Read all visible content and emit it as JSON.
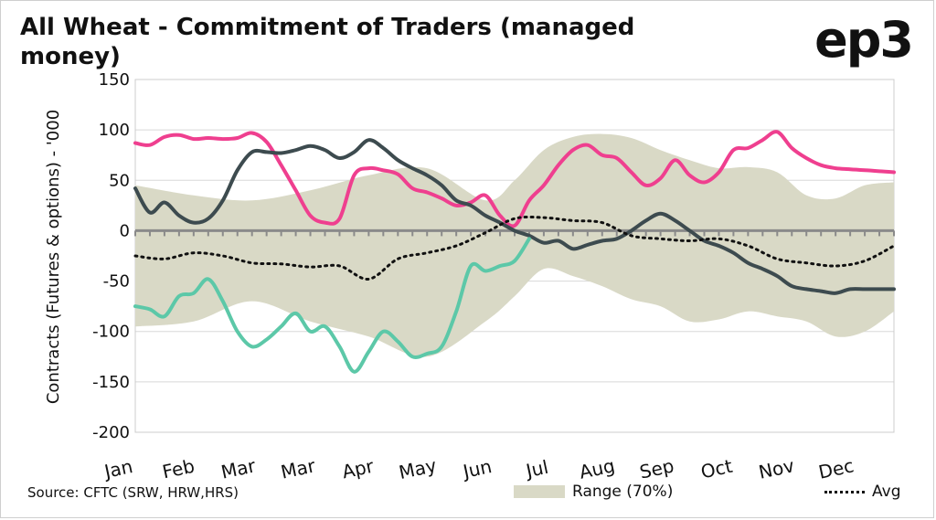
{
  "header": {
    "title": "All Wheat - Commitment of Traders (managed money)",
    "logo_text": "ep3"
  },
  "footer": {
    "source": "Source: CFTC (SRW, HRW,HRS)"
  },
  "colors": {
    "range_fill": "#d9d9c6",
    "pink": "#ef3f8f",
    "dark": "#3d4b4f",
    "teal": "#5cc8a8",
    "avg": "#111111",
    "grid": "#d8d8d8",
    "zero_line": "#8a8a8a"
  },
  "chart_data": {
    "type": "line",
    "ylabel": "Contracts (Futures & options) - '000",
    "ylim": [
      -200,
      150
    ],
    "y_ticks": [
      "150",
      "100",
      "50",
      "0",
      "-50",
      "-100",
      "-150",
      "-200"
    ],
    "x_range": [
      0,
      52
    ],
    "grid": true,
    "legend_position": "bottom",
    "month_labels": [
      "Jan",
      "Feb",
      "Mar",
      "Mar",
      "Apr",
      "May",
      "Jun",
      "Jul",
      "Aug",
      "Sep",
      "Oct",
      "Nov",
      "Dec"
    ],
    "week_ticks": 52,
    "range_band": {
      "name": "Range (70%)",
      "x": [
        0,
        4,
        8,
        12,
        16,
        20,
        24,
        26,
        28,
        30,
        32,
        34,
        36,
        38,
        40,
        42,
        44,
        46,
        48,
        50,
        52
      ],
      "upper": [
        45,
        35,
        30,
        40,
        55,
        62,
        30,
        50,
        80,
        93,
        96,
        92,
        80,
        70,
        62,
        63,
        58,
        35,
        32,
        45,
        48
      ],
      "lower": [
        -95,
        -90,
        -70,
        -90,
        -105,
        -125,
        -90,
        -65,
        -38,
        -45,
        -55,
        -68,
        -75,
        -90,
        -88,
        -80,
        -85,
        -90,
        -105,
        -100,
        -80
      ]
    },
    "series": [
      {
        "name": "",
        "color_key": "pink",
        "x": [
          0,
          1,
          2,
          3,
          4,
          5,
          6,
          7,
          8,
          9,
          10,
          11,
          12,
          13,
          14,
          15,
          16,
          17,
          18,
          19,
          20,
          21,
          22,
          23,
          24,
          25,
          26,
          27,
          28,
          29,
          30,
          31,
          32,
          33,
          34,
          35,
          36,
          37,
          38,
          39,
          40,
          41,
          42,
          43,
          44,
          45,
          46,
          47,
          48,
          49,
          50,
          51,
          52
        ],
        "values": [
          87,
          85,
          93,
          95,
          91,
          92,
          91,
          92,
          97,
          88,
          65,
          40,
          15,
          8,
          12,
          55,
          62,
          60,
          56,
          42,
          38,
          32,
          25,
          28,
          35,
          15,
          5,
          30,
          45,
          65,
          80,
          85,
          75,
          72,
          58,
          45,
          52,
          70,
          55,
          48,
          58,
          80,
          82,
          90,
          98,
          82,
          72,
          65,
          62,
          61,
          60,
          59,
          58
        ]
      },
      {
        "name": "",
        "color_key": "dark",
        "x": [
          0,
          1,
          2,
          3,
          4,
          5,
          6,
          7,
          8,
          9,
          10,
          11,
          12,
          13,
          14,
          15,
          16,
          17,
          18,
          19,
          20,
          21,
          22,
          23,
          24,
          25,
          26,
          27,
          28,
          29,
          30,
          31,
          32,
          33,
          34,
          35,
          36,
          37,
          38,
          39,
          40,
          41,
          42,
          43,
          44,
          45,
          46,
          47,
          48,
          49,
          50,
          51,
          52
        ],
        "values": [
          42,
          18,
          28,
          15,
          8,
          12,
          30,
          60,
          78,
          78,
          77,
          80,
          84,
          80,
          72,
          78,
          90,
          82,
          70,
          62,
          55,
          45,
          30,
          25,
          15,
          8,
          0,
          -5,
          -12,
          -10,
          -18,
          -14,
          -10,
          -8,
          0,
          10,
          17,
          10,
          0,
          -10,
          -15,
          -22,
          -32,
          -38,
          -45,
          -55,
          -58,
          -60,
          -62,
          -58,
          -58,
          -58,
          -58
        ]
      },
      {
        "name": "",
        "color_key": "teal",
        "x": [
          0,
          1,
          2,
          3,
          4,
          5,
          6,
          7,
          8,
          9,
          10,
          11,
          12,
          13,
          14,
          15,
          16,
          17,
          18,
          19,
          20,
          21,
          22,
          23,
          24,
          25,
          26,
          27
        ],
        "values": [
          -75,
          -78,
          -85,
          -65,
          -62,
          -48,
          -70,
          -100,
          -115,
          -108,
          -95,
          -82,
          -100,
          -95,
          -115,
          -140,
          -120,
          -100,
          -110,
          -125,
          -122,
          -115,
          -80,
          -35,
          -40,
          -35,
          -30,
          -8
        ]
      }
    ],
    "average": {
      "name": "Avg",
      "x": [
        0,
        2,
        4,
        6,
        8,
        10,
        12,
        14,
        16,
        18,
        20,
        22,
        24,
        26,
        28,
        30,
        32,
        34,
        36,
        38,
        40,
        42,
        44,
        46,
        48,
        50,
        52
      ],
      "values": [
        -25,
        -28,
        -22,
        -25,
        -32,
        -33,
        -36,
        -35,
        -48,
        -28,
        -22,
        -15,
        -2,
        12,
        13,
        10,
        8,
        -5,
        -8,
        -10,
        -8,
        -15,
        -28,
        -32,
        -35,
        -30,
        -15
      ]
    }
  }
}
